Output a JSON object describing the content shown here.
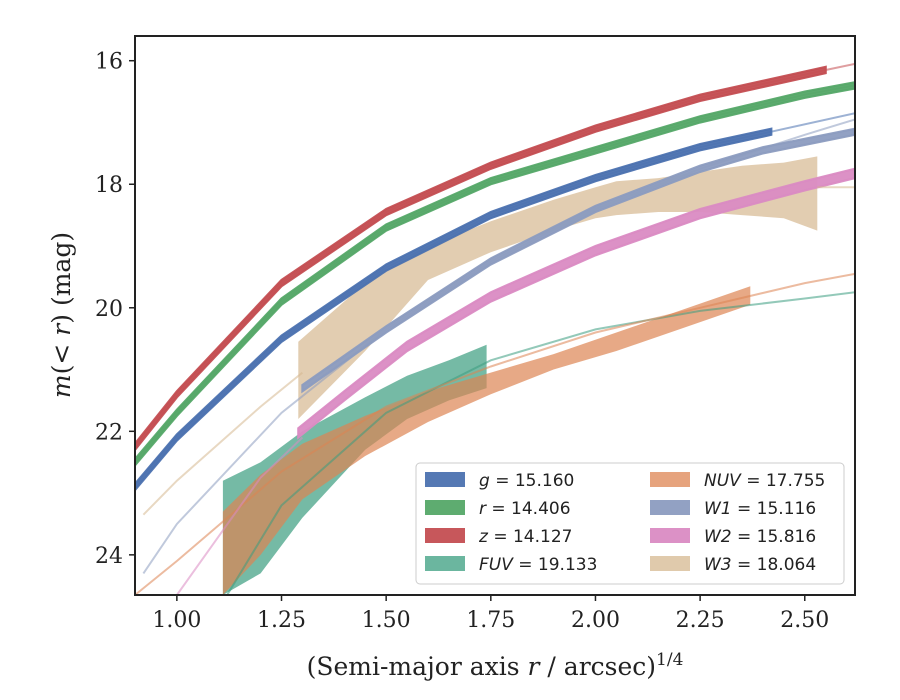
{
  "chart_data": {
    "type": "line",
    "title": "",
    "xlabel": "(Semi-major axis r / arcsec)^{1/4}",
    "xlabel_parts": {
      "main": "(Semi-major axis ",
      "var": "r",
      "mid": " / arcsec)",
      "sup": "1/4"
    },
    "ylabel": "m(< r) (mag)",
    "ylabel_parts": {
      "var": "m",
      "rest": "(< ",
      "var2": "r",
      "end": ") (mag)"
    },
    "xlim": [
      0.9,
      2.62
    ],
    "ylim": [
      24.65,
      15.6
    ],
    "y_inverted": true,
    "grid": false,
    "legend_position": "lower-right",
    "xticks": [
      1.0,
      1.25,
      1.5,
      1.75,
      2.0,
      2.25,
      2.5
    ],
    "xtick_labels": [
      "1.00",
      "1.25",
      "1.50",
      "1.75",
      "2.00",
      "2.25",
      "2.50"
    ],
    "yticks": [
      16,
      18,
      20,
      22,
      24
    ],
    "ytick_labels": [
      "16",
      "18",
      "20",
      "22",
      "24"
    ],
    "legend": [
      {
        "var": "g",
        "value": "15.160"
      },
      {
        "var": "r",
        "value": "14.406"
      },
      {
        "var": "z",
        "value": "14.127"
      },
      {
        "var": "FUV",
        "value": "19.133"
      },
      {
        "var": "NUV",
        "value": "17.755"
      },
      {
        "var": "W1",
        "value": "15.116"
      },
      {
        "var": "W2",
        "value": "15.816"
      },
      {
        "var": "W3",
        "value": "18.064"
      }
    ],
    "series": [
      {
        "name": "g = 15.160",
        "color": "#4c72b0",
        "model_x": [
          0.9,
          1.0,
          1.25,
          1.5,
          1.75,
          2.0,
          2.25,
          2.42,
          2.62
        ],
        "model_y": [
          22.9,
          22.1,
          20.5,
          19.35,
          18.5,
          17.9,
          17.4,
          17.15,
          16.85
        ],
        "band_x": [
          0.9,
          1.0,
          1.25,
          1.5,
          1.75,
          2.0,
          2.25,
          2.42
        ],
        "band_upper": [
          22.85,
          22.05,
          20.45,
          19.3,
          18.45,
          17.85,
          17.35,
          17.1
        ],
        "band_lower": [
          22.95,
          22.15,
          20.55,
          19.4,
          18.55,
          17.95,
          17.45,
          17.2
        ]
      },
      {
        "name": "r = 14.406",
        "color": "#55a868",
        "model_x": [
          0.9,
          1.0,
          1.25,
          1.5,
          1.75,
          2.0,
          2.25,
          2.5,
          2.62
        ],
        "model_y": [
          22.5,
          21.7,
          19.9,
          18.7,
          17.95,
          17.45,
          16.95,
          16.55,
          16.4
        ],
        "band_x": [
          0.9,
          1.0,
          1.25,
          1.5,
          1.75,
          2.0,
          2.25,
          2.5,
          2.62
        ],
        "band_upper": [
          22.45,
          21.65,
          19.85,
          18.65,
          17.9,
          17.4,
          16.9,
          16.5,
          16.35
        ],
        "band_lower": [
          22.55,
          21.75,
          19.95,
          18.75,
          18.0,
          17.5,
          17.0,
          16.6,
          16.45
        ]
      },
      {
        "name": "z = 14.127",
        "color": "#c44e52",
        "model_x": [
          0.9,
          1.0,
          1.25,
          1.5,
          1.75,
          2.0,
          2.25,
          2.55,
          2.62
        ],
        "model_y": [
          22.25,
          21.4,
          19.6,
          18.45,
          17.7,
          17.1,
          16.6,
          16.15,
          16.05
        ],
        "band_x": [
          0.9,
          1.0,
          1.25,
          1.5,
          1.75,
          2.0,
          2.25,
          2.55
        ],
        "band_upper": [
          22.2,
          21.35,
          19.55,
          18.4,
          17.65,
          17.05,
          16.55,
          16.1
        ],
        "band_lower": [
          22.3,
          21.45,
          19.65,
          18.5,
          17.75,
          17.15,
          16.65,
          16.2
        ]
      },
      {
        "name": "FUV = 19.133",
        "color": "#3a9d7f",
        "model_x": [
          1.12,
          1.25,
          1.5,
          1.75,
          2.0,
          2.25,
          2.5,
          2.62
        ],
        "model_y": [
          24.65,
          23.2,
          21.7,
          20.85,
          20.35,
          20.05,
          19.85,
          19.75
        ],
        "band_x": [
          1.11,
          1.2,
          1.3,
          1.45,
          1.55,
          1.65,
          1.74
        ],
        "band_upper": [
          22.8,
          22.5,
          22.0,
          21.45,
          21.1,
          20.85,
          20.6
        ],
        "band_lower": [
          24.65,
          24.3,
          23.4,
          22.3,
          21.8,
          21.5,
          21.3
        ]
      },
      {
        "name": "NUV = 17.755",
        "color": "#dd8452",
        "model_x": [
          0.9,
          1.0,
          1.25,
          1.5,
          1.75,
          2.0,
          2.25,
          2.5,
          2.62
        ],
        "model_y": [
          24.65,
          24.1,
          22.65,
          21.6,
          20.95,
          20.4,
          20.0,
          19.6,
          19.45
        ],
        "band_x": [
          1.11,
          1.2,
          1.3,
          1.45,
          1.6,
          1.75,
          1.9,
          2.05,
          2.2,
          2.37
        ],
        "band_upper": [
          23.3,
          22.7,
          22.2,
          21.75,
          21.35,
          21.05,
          20.75,
          20.4,
          20.05,
          19.65
        ],
        "band_lower": [
          24.65,
          24.0,
          23.1,
          22.4,
          21.85,
          21.4,
          21.0,
          20.7,
          20.35,
          19.95
        ]
      },
      {
        "name": "W1 = 15.116",
        "color": "#8c9cc0",
        "model_x": [
          0.92,
          1.0,
          1.25,
          1.5,
          1.75,
          2.0,
          2.25,
          2.5,
          2.62
        ],
        "model_y": [
          24.3,
          23.5,
          21.7,
          20.35,
          19.25,
          18.4,
          17.75,
          17.2,
          16.95
        ],
        "band_x": [
          1.3,
          1.5,
          1.75,
          2.0,
          2.25,
          2.4,
          2.62
        ],
        "band_upper": [
          21.25,
          20.3,
          19.2,
          18.35,
          17.7,
          17.4,
          17.1
        ],
        "band_lower": [
          21.35,
          20.4,
          19.3,
          18.45,
          17.8,
          17.5,
          17.2
        ]
      },
      {
        "name": "W2 = 15.816",
        "color": "#da8bc3",
        "model_x": [
          1.0,
          1.1,
          1.2,
          1.3
        ],
        "model_y": [
          24.65,
          23.7,
          22.75,
          22.1
        ],
        "band_x": [
          1.29,
          1.4,
          1.55,
          1.75,
          2.0,
          2.25,
          2.5,
          2.62
        ],
        "band_upper": [
          21.95,
          21.35,
          20.55,
          19.75,
          19.0,
          18.4,
          17.95,
          17.75
        ],
        "band_lower": [
          22.1,
          21.5,
          20.7,
          19.9,
          19.15,
          18.55,
          18.1,
          17.9
        ]
      },
      {
        "name": "W3 = 18.064",
        "color": "#d5b890",
        "model_x": [
          0.92,
          1.0,
          1.1,
          1.2,
          1.3
        ],
        "model_y": [
          23.35,
          22.8,
          22.2,
          21.6,
          21.05
        ],
        "tail_x": [
          2.53,
          2.62
        ],
        "tail_y": [
          18.05,
          18.05
        ],
        "band_x": [
          1.29,
          1.45,
          1.6,
          1.75,
          1.9,
          2.0,
          2.05,
          2.15,
          2.25,
          2.35,
          2.45,
          2.53
        ],
        "band_upper": [
          20.55,
          19.6,
          19.0,
          18.6,
          18.25,
          18.05,
          17.95,
          17.9,
          17.8,
          17.7,
          17.65,
          17.55
        ],
        "band_lower": [
          21.8,
          20.7,
          19.55,
          19.1,
          18.75,
          18.55,
          18.5,
          18.45,
          18.45,
          18.5,
          18.55,
          18.75
        ]
      }
    ]
  }
}
